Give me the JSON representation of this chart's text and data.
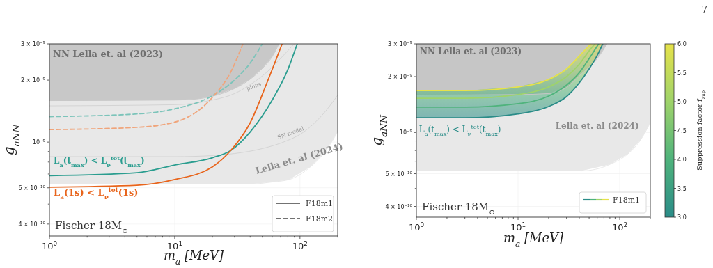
{
  "chart_data": [
    {
      "type": "line",
      "xlabel": "m$_{a}$ [MeV]",
      "ylabel": "g$_{aNN}$",
      "log": "xy",
      "xlim": [
        1,
        200
      ],
      "ylim": [
        3.5e-10,
        3e-09
      ],
      "xticks": [
        {
          "value": 1,
          "label": "10$^{0}$"
        },
        {
          "value": 2,
          "label": null
        },
        {
          "value": 3,
          "label": null
        },
        {
          "value": 4,
          "label": null
        },
        {
          "value": 5,
          "label": null
        },
        {
          "value": 6,
          "label": null
        },
        {
          "value": 7,
          "label": null
        },
        {
          "value": 8,
          "label": null
        },
        {
          "value": 9,
          "label": null
        },
        {
          "value": 10,
          "label": "10$^{1}$"
        },
        {
          "value": 20,
          "label": null
        },
        {
          "value": 30,
          "label": null
        },
        {
          "value": 40,
          "label": null
        },
        {
          "value": 50,
          "label": null
        },
        {
          "value": 60,
          "label": null
        },
        {
          "value": 70,
          "label": null
        },
        {
          "value": 80,
          "label": null
        },
        {
          "value": 90,
          "label": null
        },
        {
          "value": 100,
          "label": "10$^{2}$"
        },
        {
          "value": 200,
          "label": null
        }
      ],
      "yticks": [
        {
          "value": 4e-10,
          "label": "4 × 10$^{−10}$"
        },
        {
          "value": 5e-10,
          "label": null
        },
        {
          "value": 6e-10,
          "label": "6 × 10$^{−10}$"
        },
        {
          "value": 7e-10,
          "label": null
        },
        {
          "value": 8e-10,
          "label": null
        },
        {
          "value": 9e-10,
          "label": null
        },
        {
          "value": 1e-09,
          "label": "10$^{−9}$"
        },
        {
          "value": 2e-09,
          "label": "2 × 10$^{−9}$"
        },
        {
          "value": 3e-09,
          "label": "3 × 10$^{−9}$"
        }
      ],
      "grid": true,
      "annotations": [
        "Fischer 18M$_{⊙}$",
        "F18m1",
        "F18m2",
        "7",
        "NN Lella et. al (2023)"
      ],
      "series": [
        {
          "name": "Lella et. al (2024)",
          "color": "#e8e8e8",
          "x": [
            1,
            10,
            20,
            30,
            40,
            60,
            82,
            121,
            156,
            200
          ],
          "values": [
            6.25e-10,
            6.25e-10,
            6.25e-10,
            6.25e-10,
            6.25e-10,
            6.4e-10,
            6.58e-10,
            7.58e-10,
            8.86e-10,
            1.12e-09
          ],
          "lower": [
            6.25e-10,
            6.25e-10,
            6.25e-10,
            6.25e-10,
            6.25e-10,
            6.4e-10,
            6.58e-10,
            7.58e-10,
            8.86e-10,
            1.12e-09
          ],
          "upper": [
            3e-09,
            3e-09,
            3e-09,
            3e-09,
            3e-09,
            3e-09,
            3e-09,
            3e-09,
            3e-09,
            3e-09
          ]
        },
        {
          "color": "#c8c8c8",
          "x": [
            1,
            10,
            15,
            20,
            30,
            40,
            50,
            60,
            68
          ],
          "values": [
            1.59e-09,
            1.6e-09,
            1.62e-09,
            1.67e-09,
            1.82e-09,
            2.02e-09,
            2.28e-09,
            2.6e-09,
            3e-09
          ],
          "lower": [
            1.59e-09,
            1.6e-09,
            1.62e-09,
            1.67e-09,
            1.82e-09,
            2.02e-09,
            2.28e-09,
            2.6e-09,
            3e-09
          ],
          "upper": [
            3e-09,
            3e-09,
            3e-09,
            3e-09,
            3e-09,
            3e-09,
            3e-09,
            3e-09,
            3e-09
          ]
        },
        {
          "name": "pions",
          "color": "#d4d4d4",
          "x": [
            1,
            10,
            20,
            30,
            40,
            55,
            70,
            90
          ],
          "values": [
            1.5e-09,
            1.52e-09,
            1.6e-09,
            1.72e-09,
            1.9e-09,
            2.2e-09,
            2.55e-09,
            3e-09
          ]
        },
        {
          "name": "SN model",
          "color": "#d4d4d4",
          "x": [
            1,
            10,
            20,
            30,
            50,
            80,
            100,
            150,
            200
          ],
          "values": [
            8.5e-10,
            8.5e-10,
            8.6e-10,
            8.8e-10,
            9.3e-10,
            1.02e-09,
            1.09e-09,
            1.35e-09,
            1.69e-09
          ]
        },
        {
          "color": "#7cc4ba",
          "line_style": "dashed",
          "x": [
            1,
            5,
            10,
            20,
            30,
            40,
            50
          ],
          "values": [
            1.33e-09,
            1.37e-09,
            1.45e-09,
            1.68e-09,
            2e-09,
            2.42e-09,
            3e-09
          ]
        },
        {
          "color": "#f0a47a",
          "line_style": "dashed",
          "x": [
            1,
            5,
            10,
            20,
            28,
            35
          ],
          "values": [
            1.15e-09,
            1.18e-09,
            1.25e-09,
            1.65e-09,
            2.19e-09,
            3e-09
          ]
        },
        {
          "name": "L$_{a}$(t$_{max}$) < L$_{ν}$$^{tot}$(t$_{max}$)",
          "color": "#2a9d8f",
          "line_style": "solid",
          "x": [
            1,
            5,
            10,
            20,
            28,
            40,
            60,
            80,
            95
          ],
          "values": [
            6.87e-10,
            7.1e-10,
            7.74e-10,
            8.4e-10,
            9.1e-10,
            1.12e-09,
            1.6e-09,
            2.25e-09,
            3e-09
          ]
        },
        {
          "name": "L$_{a}$(1s) < L$_{ν}$$^{tot}$(1s)",
          "color": "#e8641b",
          "line_style": "solid",
          "x": [
            1,
            5,
            10,
            20,
            28,
            40,
            55,
            72
          ],
          "values": [
            6.04e-10,
            6.17e-10,
            6.58e-10,
            7.58e-10,
            9.1e-10,
            1.24e-09,
            1.97e-09,
            3e-09
          ]
        }
      ]
    },
    {
      "type": "line",
      "xlabel": "m$_{a}$ [MeV]",
      "ylabel": "g$_{aNN}$",
      "log": "xy",
      "xlim": [
        1,
        200
      ],
      "ylim": [
        3.5e-10,
        3e-09
      ],
      "xticks": [
        {
          "value": 1,
          "label": "10$^{0}$"
        },
        {
          "value": 2,
          "label": null
        },
        {
          "value": 3,
          "label": null
        },
        {
          "value": 4,
          "label": null
        },
        {
          "value": 5,
          "label": null
        },
        {
          "value": 6,
          "label": null
        },
        {
          "value": 7,
          "label": null
        },
        {
          "value": 8,
          "label": null
        },
        {
          "value": 9,
          "label": null
        },
        {
          "value": 10,
          "label": "10$^{1}$"
        },
        {
          "value": 20,
          "label": null
        },
        {
          "value": 30,
          "label": null
        },
        {
          "value": 40,
          "label": null
        },
        {
          "value": 50,
          "label": null
        },
        {
          "value": 60,
          "label": null
        },
        {
          "value": 70,
          "label": null
        },
        {
          "value": 80,
          "label": null
        },
        {
          "value": 90,
          "label": null
        },
        {
          "value": 100,
          "label": "10$^{2}$"
        },
        {
          "value": 200,
          "label": null
        }
      ],
      "yticks": [
        {
          "value": 4e-10,
          "label": "4 × 10$^{−10}$"
        },
        {
          "value": 5e-10,
          "label": null
        },
        {
          "value": 6e-10,
          "label": "6 × 10$^{−10}$"
        },
        {
          "value": 7e-10,
          "label": null
        },
        {
          "value": 8e-10,
          "label": null
        },
        {
          "value": 9e-10,
          "label": null
        },
        {
          "value": 1e-09,
          "label": "10$^{−9}$"
        },
        {
          "value": 2e-09,
          "label": "2 × 10$^{−9}$"
        },
        {
          "value": 3e-09,
          "label": "3 × 10$^{−9}$"
        }
      ],
      "grid": true,
      "annotations": [
        "Fischer 18M$_{⊙}$",
        "F18m1",
        "NN Lella et. al (2023)"
      ],
      "clabel": "Suppression factor f$_{sup}$",
      "clim": [
        3,
        6
      ],
      "cticks": [
        {
          "value": 3,
          "label": "3.0"
        },
        {
          "value": 3.5,
          "label": "3.5"
        },
        {
          "value": 4,
          "label": "4.0"
        },
        {
          "value": 4.5,
          "label": "4.5"
        },
        {
          "value": 5,
          "label": "5.0"
        },
        {
          "value": 5.5,
          "label": "5.5"
        },
        {
          "value": 6,
          "label": "6.0"
        }
      ],
      "series": [
        {
          "name": "Lella et. al (2024)",
          "color": "#e8e8e8",
          "x": [
            1,
            20,
            42,
            80,
            120,
            160,
            200
          ],
          "values": [
            6.21e-10,
            6.21e-10,
            6.21e-10,
            6.73e-10,
            7.66e-10,
            9.1e-10,
            1.13e-09
          ],
          "lower": [
            6.21e-10,
            6.21e-10,
            6.21e-10,
            6.73e-10,
            7.66e-10,
            9.1e-10,
            1.13e-09
          ],
          "upper": [
            3e-09,
            3e-09,
            3e-09,
            3e-09,
            3e-09,
            3e-09,
            3e-09
          ]
        },
        {
          "color": "#c6c6c6",
          "x": [
            1,
            10,
            20,
            30,
            40,
            50,
            60,
            75
          ],
          "values": [
            1.59e-09,
            1.6e-09,
            1.62e-09,
            1.75e-09,
            2.02e-09,
            2.25e-09,
            2.5e-09,
            3e-09
          ],
          "lower": [
            1.59e-09,
            1.6e-09,
            1.62e-09,
            1.75e-09,
            2.02e-09,
            2.25e-09,
            2.5e-09,
            3e-09
          ],
          "upper": [
            3e-09,
            3e-09,
            3e-09,
            3e-09,
            3e-09,
            3e-09,
            3e-09,
            3e-09
          ]
        },
        {
          "name": "L$_{a}$(t$_{max}$) < L$_{ν}$$^{tot}$(t$_{max}$)",
          "color": "#2a8c88",
          "x": [
            1,
            3,
            10,
            20,
            30,
            40,
            50,
            60,
            68
          ],
          "values": [
            1.2e-09,
            1.2e-09,
            1.26e-09,
            1.38e-09,
            1.56e-09,
            1.85e-09,
            2.2e-09,
            2.6e-09,
            3e-09
          ]
        },
        {
          "color": "#4fb37c",
          "x": [
            1,
            3,
            10,
            20,
            30,
            40,
            50,
            62
          ],
          "values": [
            1.37e-09,
            1.37e-09,
            1.43e-09,
            1.57e-09,
            1.8e-09,
            2.1e-09,
            2.5e-09,
            3e-09
          ]
        },
        {
          "color": "#9fd36a",
          "x": [
            1,
            3,
            10,
            20,
            30,
            40,
            50,
            57
          ],
          "values": [
            1.53e-09,
            1.53e-09,
            1.6e-09,
            1.76e-09,
            2e-09,
            2.33e-09,
            2.75e-09,
            3e-09
          ]
        },
        {
          "color": "#e6e24a",
          "x": [
            1,
            3,
            10,
            20,
            30,
            40,
            52
          ],
          "values": [
            1.68e-09,
            1.68e-09,
            1.76e-09,
            1.93e-09,
            2.2e-09,
            2.58e-09,
            3e-09
          ]
        }
      ]
    }
  ]
}
